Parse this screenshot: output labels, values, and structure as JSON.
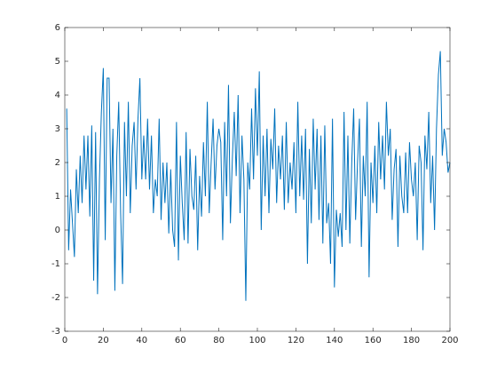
{
  "chart_data": {
    "type": "line",
    "color": "#0072bd",
    "x": [
      1,
      2,
      3,
      4,
      5,
      6,
      7,
      8,
      9,
      10,
      11,
      12,
      13,
      14,
      15,
      16,
      17,
      18,
      19,
      20,
      21,
      22,
      23,
      24,
      25,
      26,
      27,
      28,
      29,
      30,
      31,
      32,
      33,
      34,
      35,
      36,
      37,
      38,
      39,
      40,
      41,
      42,
      43,
      44,
      45,
      46,
      47,
      48,
      49,
      50,
      51,
      52,
      53,
      54,
      55,
      56,
      57,
      58,
      59,
      60,
      61,
      62,
      63,
      64,
      65,
      66,
      67,
      68,
      69,
      70,
      71,
      72,
      73,
      74,
      75,
      76,
      77,
      78,
      79,
      80,
      81,
      82,
      83,
      84,
      85,
      86,
      87,
      88,
      89,
      90,
      91,
      92,
      93,
      94,
      95,
      96,
      97,
      98,
      99,
      100,
      101,
      102,
      103,
      104,
      105,
      106,
      107,
      108,
      109,
      110,
      111,
      112,
      113,
      114,
      115,
      116,
      117,
      118,
      119,
      120,
      121,
      122,
      123,
      124,
      125,
      126,
      127,
      128,
      129,
      130,
      131,
      132,
      133,
      134,
      135,
      136,
      137,
      138,
      139,
      140,
      141,
      142,
      143,
      144,
      145,
      146,
      147,
      148,
      149,
      150,
      151,
      152,
      153,
      154,
      155,
      156,
      157,
      158,
      159,
      160,
      161,
      162,
      163,
      164,
      165,
      166,
      167,
      168,
      169,
      170,
      171,
      172,
      173,
      174,
      175,
      176,
      177,
      178,
      179,
      180,
      181,
      182,
      183,
      184,
      185,
      186,
      187,
      188,
      189,
      190,
      191,
      192,
      193,
      194,
      195,
      196,
      197,
      198,
      199,
      200
    ],
    "values": [
      3.6,
      -0.6,
      1.2,
      0.2,
      -0.8,
      1.8,
      0.5,
      2.2,
      0.8,
      2.8,
      1.2,
      2.8,
      0.4,
      3.1,
      -1.5,
      2.9,
      -1.9,
      1.5,
      3.5,
      4.8,
      -0.3,
      4.5,
      4.5,
      0.8,
      3.0,
      -1.8,
      2.2,
      3.8,
      0.5,
      -1.6,
      3.2,
      1.0,
      3.8,
      0.5,
      2.5,
      3.2,
      1.2,
      3.3,
      4.5,
      1.5,
      2.8,
      1.5,
      3.3,
      1.2,
      2.8,
      0.5,
      1.5,
      1.0,
      3.3,
      0.3,
      2.0,
      0.8,
      2.0,
      -0.1,
      1.8,
      0.0,
      -0.5,
      3.2,
      -0.9,
      2.2,
      0.8,
      -0.3,
      2.9,
      -0.4,
      2.4,
      1.0,
      0.6,
      2.2,
      -0.6,
      1.6,
      0.4,
      2.6,
      1.0,
      3.8,
      0.5,
      2.0,
      3.3,
      1.2,
      2.5,
      3.0,
      2.6,
      -0.3,
      3.2,
      1.0,
      4.3,
      0.2,
      2.1,
      3.5,
      1.6,
      4.0,
      0.5,
      2.8,
      1.5,
      -2.1,
      2.0,
      1.2,
      3.6,
      1.5,
      4.2,
      2.2,
      4.7,
      0.0,
      2.8,
      1.0,
      3.0,
      0.5,
      2.7,
      1.8,
      3.6,
      0.8,
      2.5,
      1.5,
      2.8,
      0.6,
      3.2,
      0.8,
      2.0,
      1.2,
      2.6,
      0.5,
      3.8,
      1.0,
      2.8,
      0.9,
      3.0,
      -1.0,
      2.4,
      0.2,
      3.3,
      1.2,
      3.0,
      0.3,
      2.8,
      -0.4,
      3.1,
      0.2,
      0.8,
      -1.0,
      3.3,
      -1.7,
      0.6,
      -0.2,
      0.5,
      -0.5,
      3.5,
      0.0,
      2.8,
      -0.4,
      2.0,
      3.6,
      0.3,
      2.0,
      3.3,
      -0.5,
      2.2,
      1.0,
      3.8,
      -1.4,
      2.0,
      0.8,
      2.5,
      0.5,
      3.2,
      1.5,
      2.8,
      1.2,
      3.8,
      2.2,
      3.0,
      0.3,
      1.8,
      2.4,
      -0.5,
      2.2,
      1.0,
      0.5,
      2.3,
      0.5,
      2.6,
      1.5,
      1.0,
      2.0,
      -0.3,
      2.5,
      2.0,
      -0.6,
      2.8,
      1.8,
      3.5,
      0.8,
      2.2,
      0.0,
      3.0,
      4.6,
      5.3,
      2.2,
      3.0,
      2.6,
      1.7,
      2.0
    ],
    "xlim": [
      0,
      200
    ],
    "ylim": [
      -3,
      6
    ],
    "xticks": [
      0,
      20,
      40,
      60,
      80,
      100,
      120,
      140,
      160,
      180,
      200
    ],
    "yticks": [
      -3,
      -2,
      -1,
      0,
      1,
      2,
      3,
      4,
      5,
      6
    ]
  }
}
